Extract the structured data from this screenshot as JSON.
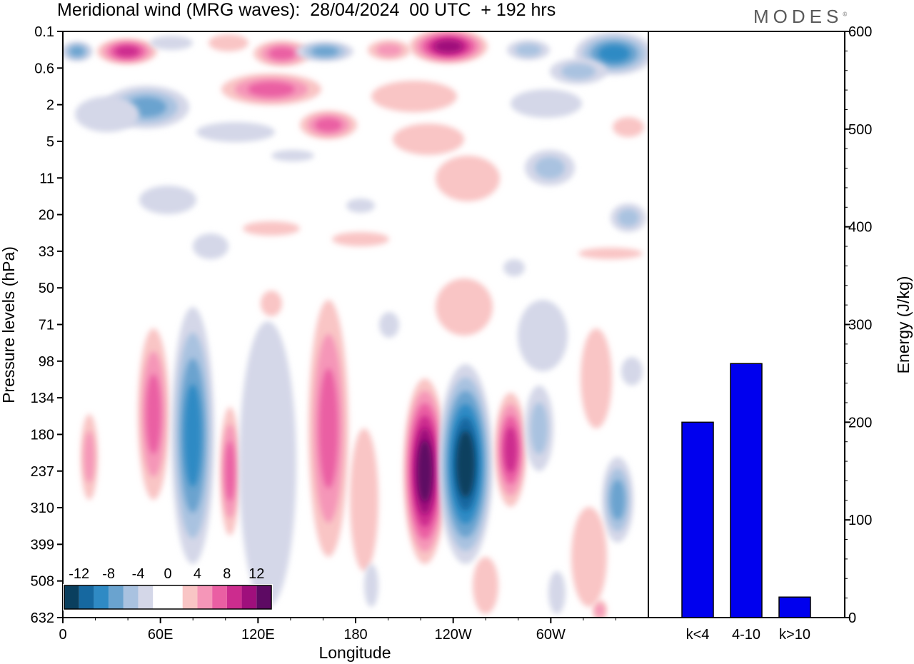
{
  "header": {
    "title": "Meridional wind (MRG waves):  28/04/2024  00 UTC  + 192 hrs",
    "brand": "MODES",
    "brand_mark": "©"
  },
  "chart_data": [
    {
      "type": "heatmap",
      "title": "Meridional wind (MRG waves):  28/04/2024  00 UTC  + 192 hrs",
      "xlabel": "Longitude",
      "ylabel": "Pressure levels (hPa)",
      "x_ticks": [
        "0",
        "60E",
        "120E",
        "180",
        "120W",
        "60W"
      ],
      "y_ticks": [
        "0.1",
        "0.6",
        "2",
        "5",
        "11",
        "20",
        "33",
        "50",
        "71",
        "98",
        "134",
        "180",
        "237",
        "310",
        "399",
        "508",
        "632"
      ],
      "colorbar": {
        "labels": [
          "-12",
          "-8",
          "-4",
          "0",
          "4",
          "8",
          "12"
        ],
        "colors": [
          "#0a3f5e",
          "#1668a0",
          "#2f8ac4",
          "#6aa3cf",
          "#a9c2e0",
          "#d4d7e8",
          "#ffffff",
          "#ffffff",
          "#f9c5c5",
          "#f596b8",
          "#ea5fa3",
          "#cc2c8e",
          "#9f0f7c",
          "#5d0a63"
        ]
      }
    },
    {
      "type": "bar",
      "categories": [
        "k<4",
        "4-10",
        "k>10"
      ],
      "values": [
        200,
        260,
        21
      ],
      "ylabel": "Energy (J/kg)",
      "ylim": [
        0,
        600
      ],
      "y_ticks": [
        "0",
        "100",
        "200",
        "300",
        "400",
        "500",
        "600"
      ],
      "bar_color": "#0000ee"
    }
  ]
}
